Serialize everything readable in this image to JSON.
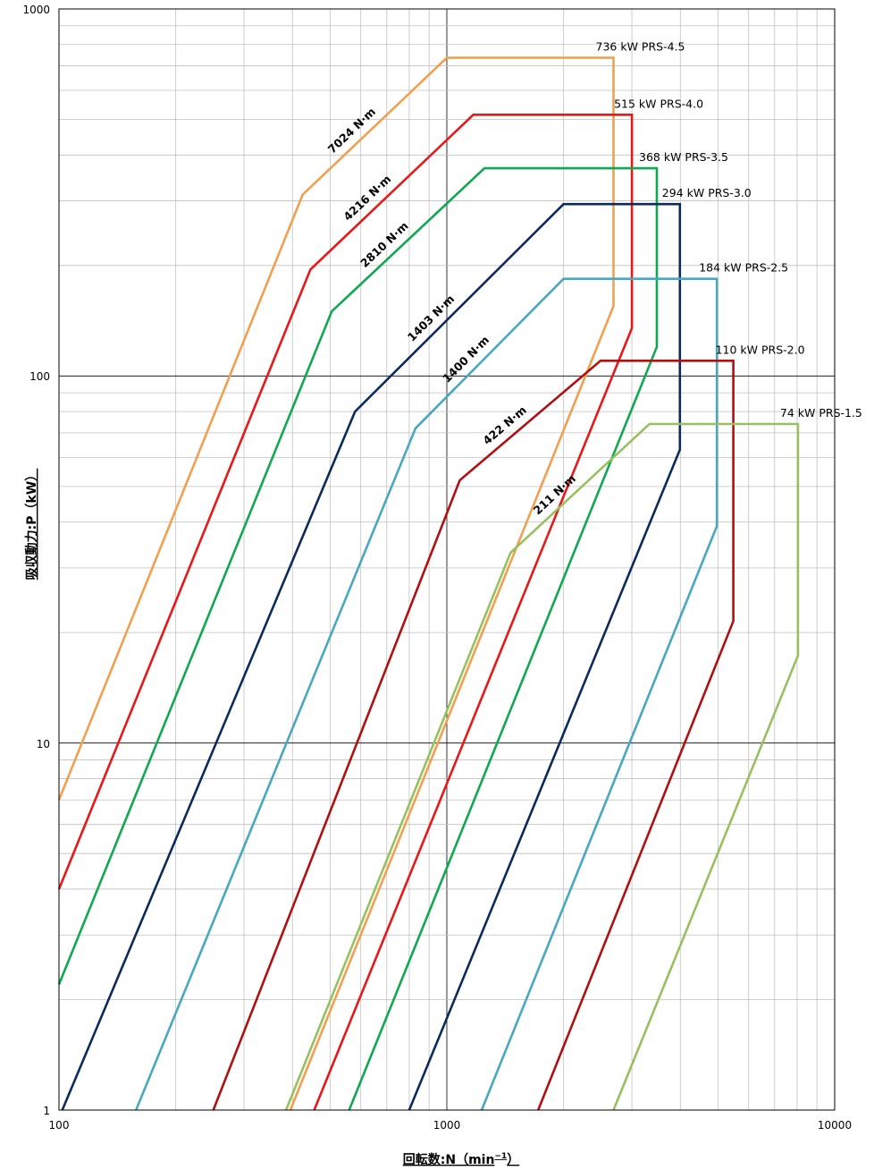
{
  "chart_data": {
    "type": "line",
    "xscale": "log",
    "yscale": "log",
    "xlim": [
      100,
      10000
    ],
    "ylim": [
      1,
      1000
    ],
    "xlabel": "回転数:N（min",
    "xlabel_sup": "−1",
    "xlabel_close": "）",
    "ylabel": "吸収動力:P（kW）",
    "x_ticks": [
      "100",
      "1000",
      "10000"
    ],
    "y_ticks": [
      "1",
      "10",
      "100",
      "1000"
    ],
    "grid": true,
    "series": [
      {
        "name": "736 kW PRS-4.5",
        "color": "#f0a050",
        "points": [
          [
            100,
            7
          ],
          [
            425,
            312
          ],
          [
            1000,
            736
          ],
          [
            2690,
            736
          ],
          [
            2690,
            155
          ],
          [
            395,
            1
          ]
        ],
        "torque_label": "7024 N·m"
      },
      {
        "name": "515 kW PRS-4.0",
        "color": "#e81818",
        "points": [
          [
            100,
            4
          ],
          [
            445,
            195
          ],
          [
            1170,
            515
          ],
          [
            3000,
            515
          ],
          [
            3000,
            135
          ],
          [
            455,
            1
          ]
        ],
        "torque_label": "4216 N·m"
      },
      {
        "name": "368 kW PRS-3.5",
        "color": "#10a850",
        "points": [
          [
            100,
            2.2
          ],
          [
            505,
            150
          ],
          [
            1250,
            368
          ],
          [
            3480,
            368
          ],
          [
            3480,
            120
          ],
          [
            560,
            1
          ]
        ],
        "torque_label": "2810 N·m"
      },
      {
        "name": "294 kW PRS-3.0",
        "color": "#0c2a5c",
        "points": [
          [
            102,
            1
          ],
          [
            580,
            80
          ],
          [
            2000,
            294
          ],
          [
            3990,
            294
          ],
          [
            3990,
            63
          ],
          [
            800,
            1
          ]
        ],
        "torque_label": "1403 N·m"
      },
      {
        "name": "184 kW PRS-2.5",
        "color": "#48a8c0",
        "points": [
          [
            158,
            1
          ],
          [
            830,
            72
          ],
          [
            2000,
            184
          ],
          [
            4970,
            184
          ],
          [
            4970,
            39
          ],
          [
            1230,
            1
          ]
        ],
        "torque_label": "1400 N·m"
      },
      {
        "name": "110 kW PRS-2.0",
        "color": "#b01010",
        "points": [
          [
            250,
            1
          ],
          [
            1080,
            52
          ],
          [
            2490,
            110
          ],
          [
            5480,
            110
          ],
          [
            5480,
            21.5
          ],
          [
            1720,
            1
          ]
        ],
        "torque_label": "422 N·m"
      },
      {
        "name": "74 kW PRS-1.5",
        "color": "#98c060",
        "points": [
          [
            385,
            1
          ],
          [
            1460,
            33
          ],
          [
            3330,
            74
          ],
          [
            8040,
            74
          ],
          [
            8040,
            17.3
          ],
          [
            2690,
            1
          ]
        ],
        "torque_label": "211 N·m"
      }
    ],
    "series_label_names": [
      "736 kW PRS-4.5",
      "515 kW PRS-4.0",
      "368 kW PRS-3.5",
      "294 kW PRS-3.0",
      "184 kW PRS-2.5",
      "110 kW PRS-2.0",
      "74 kW PRS-1.5"
    ],
    "torque_labels": [
      "7024 N·m",
      "4216 N·m",
      "2810 N·m",
      "1403 N·m",
      "1400 N·m",
      "422 N·m",
      "211 N·m"
    ]
  }
}
